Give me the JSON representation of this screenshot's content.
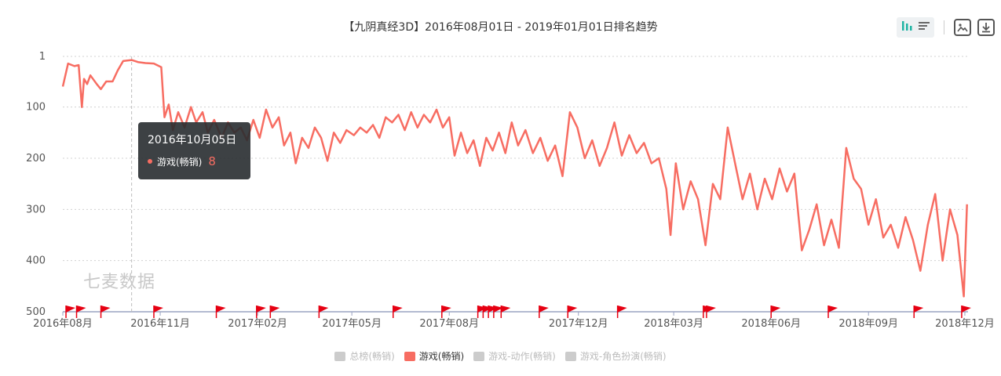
{
  "title": "【九阴真经3D】2016年08月01日 - 2019年01月01日排名趋势",
  "toolbar": {
    "icons": [
      "bar-chart-icon",
      "list-icon",
      "image-download-icon",
      "download-icon"
    ]
  },
  "watermark": "七麦数据",
  "tooltip": {
    "date": "2016年10月05日",
    "series": "游戏(畅销)",
    "value": "8"
  },
  "legend": [
    {
      "label": "总榜(畅销)",
      "active": false,
      "color": "#cccccc"
    },
    {
      "label": "游戏(畅销)",
      "active": true,
      "color": "#f76d62"
    },
    {
      "label": "游戏-动作(畅销)",
      "active": false,
      "color": "#cccccc"
    },
    {
      "label": "游戏-角色扮演(畅销)",
      "active": false,
      "color": "#cccccc"
    }
  ],
  "chart_data": {
    "type": "line",
    "title": "【九阴真经3D】2016年08月01日 - 2019年01月01日排名趋势",
    "xlabel": "",
    "ylabel": "",
    "y_inverted": true,
    "ylim": [
      1,
      500
    ],
    "y_ticks": [
      "1",
      "100",
      "200",
      "300",
      "400",
      "500"
    ],
    "y_tick_values": [
      1,
      100,
      200,
      300,
      400,
      500
    ],
    "x_ticks": [
      "2016年08月",
      "2016年11月",
      "2017年02月",
      "2017年05月",
      "2017年08月",
      "2017年12月",
      "2018年03月",
      "2018年06月",
      "2018年09月",
      "2018年12月"
    ],
    "x_tick_dates": [
      "2016-08-01",
      "2016-11-01",
      "2017-02-01",
      "2017-05-01",
      "2017-08-01",
      "2017-12-01",
      "2018-03-01",
      "2018-06-01",
      "2018-09-01",
      "2018-12-01"
    ],
    "grid": true,
    "legend_position": "bottom-center",
    "series": [
      {
        "name": "游戏(畅销)",
        "color": "#f76d62",
        "points": [
          [
            "2016-08-01",
            60
          ],
          [
            "2016-08-06",
            15
          ],
          [
            "2016-08-12",
            20
          ],
          [
            "2016-08-16",
            18
          ],
          [
            "2016-08-19",
            100
          ],
          [
            "2016-08-21",
            45
          ],
          [
            "2016-08-24",
            55
          ],
          [
            "2016-08-27",
            38
          ],
          [
            "2016-09-02",
            55
          ],
          [
            "2016-09-06",
            65
          ],
          [
            "2016-09-11",
            50
          ],
          [
            "2016-09-17",
            50
          ],
          [
            "2016-09-22",
            28
          ],
          [
            "2016-09-27",
            10
          ],
          [
            "2016-10-05",
            8
          ],
          [
            "2016-10-11",
            12
          ],
          [
            "2016-10-18",
            14
          ],
          [
            "2016-10-26",
            15
          ],
          [
            "2016-11-02",
            22
          ],
          [
            "2016-11-05",
            120
          ],
          [
            "2016-11-09",
            95
          ],
          [
            "2016-11-13",
            145
          ],
          [
            "2016-11-18",
            110
          ],
          [
            "2016-11-24",
            140
          ],
          [
            "2016-11-30",
            100
          ],
          [
            "2016-12-05",
            130
          ],
          [
            "2016-12-11",
            110
          ],
          [
            "2016-12-16",
            150
          ],
          [
            "2016-12-22",
            125
          ],
          [
            "2016-12-29",
            160
          ],
          [
            "2017-01-04",
            130
          ],
          [
            "2017-01-10",
            150
          ],
          [
            "2017-01-16",
            140
          ],
          [
            "2017-01-22",
            165
          ],
          [
            "2017-01-28",
            125
          ],
          [
            "2017-02-03",
            160
          ],
          [
            "2017-02-09",
            105
          ],
          [
            "2017-02-15",
            140
          ],
          [
            "2017-02-21",
            120
          ],
          [
            "2017-02-26",
            175
          ],
          [
            "2017-03-04",
            150
          ],
          [
            "2017-03-09",
            210
          ],
          [
            "2017-03-15",
            160
          ],
          [
            "2017-03-21",
            180
          ],
          [
            "2017-03-27",
            140
          ],
          [
            "2017-04-02",
            160
          ],
          [
            "2017-04-08",
            205
          ],
          [
            "2017-04-14",
            150
          ],
          [
            "2017-04-20",
            170
          ],
          [
            "2017-04-26",
            145
          ],
          [
            "2017-05-03",
            155
          ],
          [
            "2017-05-09",
            140
          ],
          [
            "2017-05-15",
            150
          ],
          [
            "2017-05-21",
            135
          ],
          [
            "2017-05-27",
            160
          ],
          [
            "2017-06-02",
            120
          ],
          [
            "2017-06-08",
            130
          ],
          [
            "2017-06-14",
            115
          ],
          [
            "2017-06-20",
            145
          ],
          [
            "2017-06-26",
            110
          ],
          [
            "2017-07-02",
            140
          ],
          [
            "2017-07-08",
            115
          ],
          [
            "2017-07-14",
            130
          ],
          [
            "2017-07-20",
            105
          ],
          [
            "2017-07-26",
            140
          ],
          [
            "2017-08-01",
            120
          ],
          [
            "2017-08-06",
            195
          ],
          [
            "2017-08-12",
            150
          ],
          [
            "2017-08-18",
            190
          ],
          [
            "2017-08-24",
            165
          ],
          [
            "2017-08-30",
            215
          ],
          [
            "2017-09-05",
            160
          ],
          [
            "2017-09-11",
            185
          ],
          [
            "2017-09-17",
            150
          ],
          [
            "2017-09-23",
            190
          ],
          [
            "2017-09-29",
            130
          ],
          [
            "2017-10-05",
            175
          ],
          [
            "2017-10-12",
            145
          ],
          [
            "2017-10-19",
            190
          ],
          [
            "2017-10-26",
            160
          ],
          [
            "2017-11-02",
            205
          ],
          [
            "2017-11-09",
            175
          ],
          [
            "2017-11-16",
            235
          ],
          [
            "2017-11-23",
            110
          ],
          [
            "2017-11-30",
            140
          ],
          [
            "2017-12-07",
            200
          ],
          [
            "2017-12-14",
            165
          ],
          [
            "2017-12-21",
            215
          ],
          [
            "2017-12-28",
            180
          ],
          [
            "2018-01-04",
            130
          ],
          [
            "2018-01-11",
            195
          ],
          [
            "2018-01-18",
            155
          ],
          [
            "2018-01-25",
            190
          ],
          [
            "2018-02-01",
            170
          ],
          [
            "2018-02-08",
            210
          ],
          [
            "2018-02-15",
            200
          ],
          [
            "2018-02-22",
            260
          ],
          [
            "2018-02-26",
            350
          ],
          [
            "2018-03-03",
            210
          ],
          [
            "2018-03-10",
            300
          ],
          [
            "2018-03-17",
            245
          ],
          [
            "2018-03-24",
            280
          ],
          [
            "2018-03-31",
            370
          ],
          [
            "2018-04-07",
            250
          ],
          [
            "2018-04-14",
            280
          ],
          [
            "2018-04-21",
            140
          ],
          [
            "2018-04-28",
            210
          ],
          [
            "2018-05-05",
            280
          ],
          [
            "2018-05-12",
            230
          ],
          [
            "2018-05-19",
            300
          ],
          [
            "2018-05-26",
            240
          ],
          [
            "2018-06-02",
            280
          ],
          [
            "2018-06-09",
            220
          ],
          [
            "2018-06-16",
            265
          ],
          [
            "2018-06-23",
            230
          ],
          [
            "2018-06-30",
            380
          ],
          [
            "2018-07-07",
            340
          ],
          [
            "2018-07-14",
            290
          ],
          [
            "2018-07-21",
            370
          ],
          [
            "2018-07-28",
            320
          ],
          [
            "2018-08-04",
            375
          ],
          [
            "2018-08-11",
            180
          ],
          [
            "2018-08-18",
            240
          ],
          [
            "2018-08-25",
            260
          ],
          [
            "2018-09-01",
            330
          ],
          [
            "2018-09-08",
            280
          ],
          [
            "2018-09-15",
            355
          ],
          [
            "2018-09-22",
            330
          ],
          [
            "2018-09-29",
            375
          ],
          [
            "2018-10-06",
            315
          ],
          [
            "2018-10-13",
            360
          ],
          [
            "2018-10-20",
            420
          ],
          [
            "2018-10-27",
            330
          ],
          [
            "2018-11-03",
            270
          ],
          [
            "2018-11-10",
            400
          ],
          [
            "2018-11-17",
            300
          ],
          [
            "2018-11-24",
            350
          ],
          [
            "2018-11-30",
            470
          ],
          [
            "2018-12-03",
            290
          ]
        ]
      }
    ],
    "markers": {
      "type": "flag",
      "color": "#e60012",
      "dates": [
        "2016-08-04",
        "2016-08-14",
        "2016-09-06",
        "2016-10-26",
        "2016-12-24",
        "2017-01-31",
        "2017-02-13",
        "2017-03-31",
        "2017-06-09",
        "2017-07-25",
        "2017-08-28",
        "2017-09-02",
        "2017-09-07",
        "2017-09-12",
        "2017-09-19",
        "2017-10-25",
        "2017-11-21",
        "2018-01-07",
        "2018-03-29",
        "2018-04-01",
        "2018-06-01",
        "2018-07-25",
        "2018-10-14",
        "2018-11-28"
      ]
    },
    "tooltip_point": {
      "date": "2016-10-05",
      "value": 8
    }
  }
}
